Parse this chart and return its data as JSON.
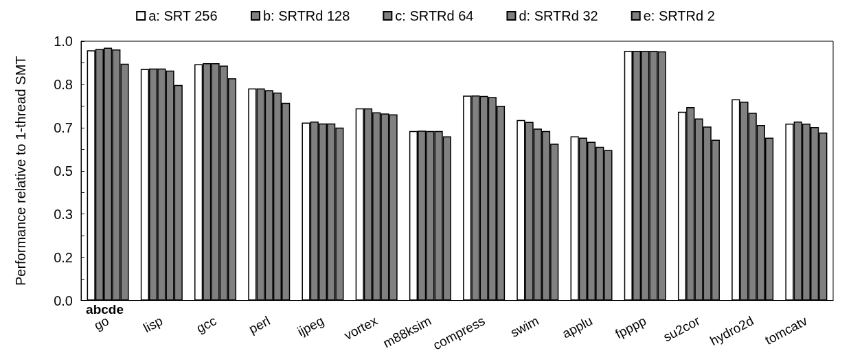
{
  "chart_data": {
    "type": "bar",
    "ylabel": "Performance relative to 1-thread SMT",
    "categories": [
      "go",
      "lisp",
      "gcc",
      "perl",
      "ijpeg",
      "vortex",
      "m88ksim",
      "compress",
      "swim",
      "applu",
      "fpppp",
      "su2cor",
      "hydro2d",
      "tomcatv"
    ],
    "series": [
      {
        "name": "a: SRT 256",
        "color": "#ffffff",
        "values": [
          0.965,
          0.893,
          0.911,
          0.818,
          0.686,
          0.741,
          0.654,
          0.79,
          0.696,
          0.633,
          0.963,
          0.728,
          0.776,
          0.682
        ]
      },
      {
        "name": "b: SRTRd 128",
        "color": "#808080",
        "values": [
          0.97,
          0.895,
          0.915,
          0.818,
          0.69,
          0.741,
          0.655,
          0.791,
          0.689,
          0.628,
          0.963,
          0.746,
          0.767,
          0.69
        ]
      },
      {
        "name": "c: SRTRd 64",
        "color": "#808080",
        "values": [
          0.975,
          0.895,
          0.915,
          0.811,
          0.683,
          0.726,
          0.654,
          0.789,
          0.663,
          0.612,
          0.963,
          0.702,
          0.724,
          0.682
        ]
      },
      {
        "name": "d: SRTRd 32",
        "color": "#808080",
        "values": [
          0.968,
          0.887,
          0.906,
          0.802,
          0.683,
          0.721,
          0.654,
          0.785,
          0.654,
          0.593,
          0.963,
          0.671,
          0.677,
          0.669
        ]
      },
      {
        "name": "e: SRTRd 2",
        "color": "#808080",
        "values": [
          0.913,
          0.831,
          0.857,
          0.762,
          0.667,
          0.718,
          0.633,
          0.751,
          0.605,
          0.58,
          0.961,
          0.62,
          0.628,
          0.648
        ]
      }
    ],
    "ylim": [
      0,
      1
    ],
    "yticks": [
      {
        "value": 0,
        "label": "0.0"
      },
      {
        "value": 0.0833,
        "label": null
      },
      {
        "value": 0.1667,
        "label": "0.2"
      },
      {
        "value": 0.25,
        "label": null
      },
      {
        "value": 0.3333,
        "label": "0.3"
      },
      {
        "value": 0.4167,
        "label": null
      },
      {
        "value": 0.5,
        "label": "0.5"
      },
      {
        "value": 0.5833,
        "label": null
      },
      {
        "value": 0.6667,
        "label": "0.7"
      },
      {
        "value": 0.75,
        "label": null
      },
      {
        "value": 0.8333,
        "label": "0.8"
      },
      {
        "value": 0.9167,
        "label": null
      },
      {
        "value": 1,
        "label": "1.0"
      }
    ],
    "annotations": [
      "abcde"
    ],
    "legend": "top",
    "grid": false
  }
}
